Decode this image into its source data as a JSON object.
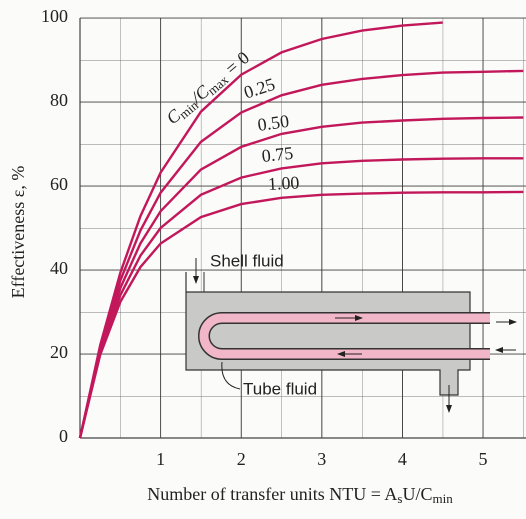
{
  "chart_data": {
    "type": "line",
    "y_label": "Effectiveness ε, %",
    "x_label_parts": [
      "Number of transfer units NTU = A",
      "s",
      "U/C",
      "min"
    ],
    "curve_label_parts": [
      "C",
      "min",
      "/C",
      "max",
      " = "
    ],
    "x": [
      0,
      0.25,
      0.5,
      0.75,
      1,
      1.5,
      2,
      2.5,
      3,
      3.5,
      4,
      4.5,
      5,
      5.5
    ],
    "series": [
      {
        "name": "0",
        "color": "#c2185b",
        "values": [
          0,
          22.1,
          39.3,
          52.8,
          63.2,
          77.7,
          86.5,
          91.8,
          95.0,
          97.0,
          98.2,
          98.9,
          null,
          null
        ]
      },
      {
        "name": "0.25",
        "color": "#c2185b",
        "values": [
          0,
          21.5,
          37.5,
          49.4,
          58.4,
          70.5,
          77.5,
          81.6,
          84.1,
          85.5,
          86.4,
          87.0,
          87.2,
          87.4
        ]
      },
      {
        "name": "0.50",
        "color": "#c2185b",
        "values": [
          0,
          20.9,
          35.7,
          46.3,
          54.0,
          63.9,
          69.3,
          72.4,
          74.1,
          75.1,
          75.6,
          76.0,
          76.2,
          76.3
        ]
      },
      {
        "name": "0.75",
        "color": "#c2185b",
        "values": [
          0,
          20.4,
          34.0,
          43.4,
          50.0,
          57.9,
          62.0,
          64.2,
          65.4,
          66.0,
          66.3,
          66.5,
          66.6,
          66.6
        ]
      },
      {
        "name": "1.00",
        "color": "#c2185b",
        "values": [
          0,
          19.8,
          32.4,
          40.7,
          46.3,
          52.6,
          55.7,
          57.2,
          57.9,
          58.2,
          58.4,
          58.5,
          58.5,
          58.6
        ]
      }
    ],
    "xlim": [
      0,
      5.5
    ],
    "ylim": [
      0,
      100
    ],
    "xticks": [
      1,
      2,
      3,
      4,
      5
    ],
    "yticks": [
      0,
      20,
      40,
      60,
      80,
      100
    ],
    "grid": true,
    "annotations": {
      "shell": "Shell fluid",
      "tube": "Tube fluid"
    }
  }
}
